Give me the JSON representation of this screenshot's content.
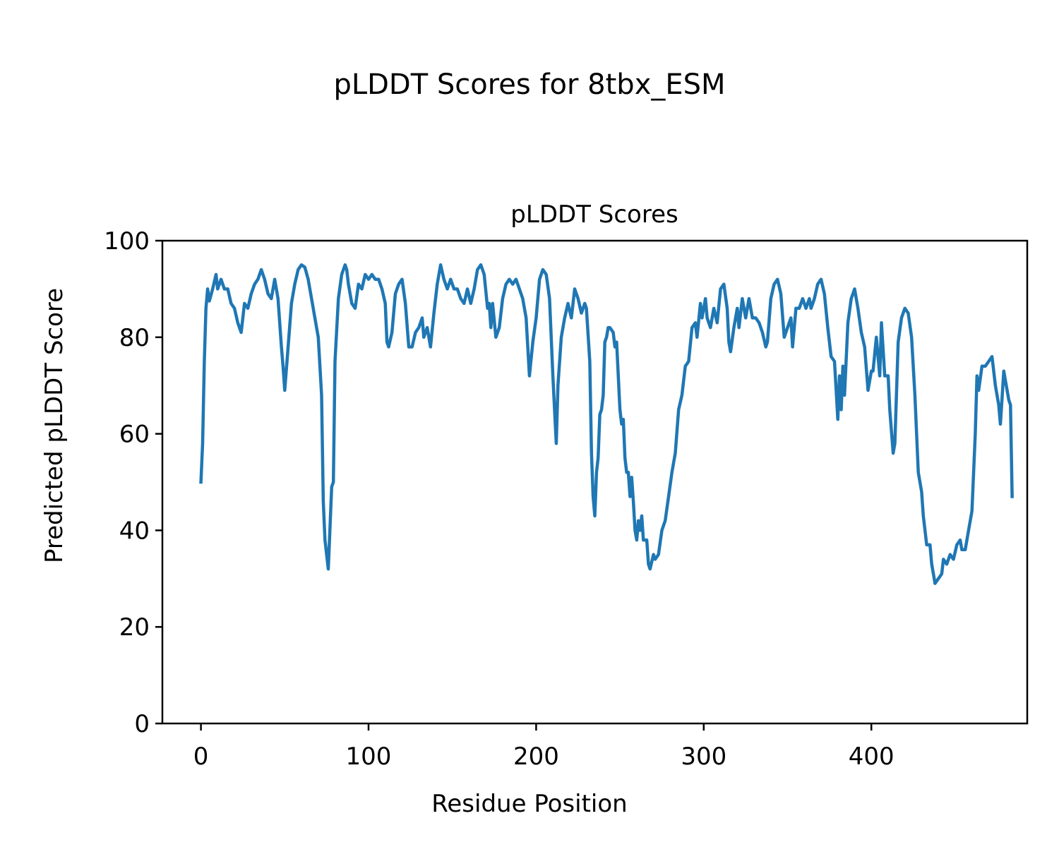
{
  "figure": {
    "suptitle": "pLDDT Scores for 8tbx_ESM"
  },
  "chart_data": {
    "type": "line",
    "title": "pLDDT Scores",
    "xlabel": "Residue Position",
    "ylabel": "Predicted pLDDT Score",
    "xlim": [
      -23,
      493
    ],
    "ylim": [
      0,
      100
    ],
    "xticks": [
      0,
      100,
      200,
      300,
      400
    ],
    "yticks": [
      0,
      20,
      40,
      60,
      80,
      100
    ],
    "grid": false,
    "legend": "none",
    "series_color": "#1f77b4",
    "knots": [
      [
        0,
        50
      ],
      [
        1,
        58
      ],
      [
        2,
        75
      ],
      [
        3,
        86
      ],
      [
        4,
        90
      ],
      [
        5,
        87.5
      ],
      [
        7,
        90
      ],
      [
        9,
        93
      ],
      [
        10,
        90
      ],
      [
        12,
        92
      ],
      [
        14,
        90
      ],
      [
        16,
        90
      ],
      [
        18,
        87
      ],
      [
        20,
        86
      ],
      [
        22,
        83
      ],
      [
        24,
        81
      ],
      [
        26,
        87
      ],
      [
        28,
        86
      ],
      [
        30,
        89
      ],
      [
        32,
        91
      ],
      [
        34,
        92
      ],
      [
        36,
        94
      ],
      [
        38,
        92
      ],
      [
        40,
        89
      ],
      [
        42,
        88
      ],
      [
        44,
        92
      ],
      [
        46,
        88
      ],
      [
        48,
        78
      ],
      [
        49,
        74
      ],
      [
        50,
        69
      ],
      [
        52,
        78
      ],
      [
        54,
        87
      ],
      [
        56,
        91
      ],
      [
        58,
        94
      ],
      [
        60,
        95
      ],
      [
        62,
        94.5
      ],
      [
        64,
        92
      ],
      [
        66,
        88
      ],
      [
        68,
        84
      ],
      [
        70,
        80
      ],
      [
        72,
        68
      ],
      [
        73,
        46
      ],
      [
        74,
        38
      ],
      [
        76,
        32
      ],
      [
        78,
        49
      ],
      [
        79,
        50
      ],
      [
        80,
        75
      ],
      [
        82,
        88
      ],
      [
        84,
        93
      ],
      [
        86,
        95
      ],
      [
        87,
        94
      ],
      [
        88,
        91
      ],
      [
        90,
        87
      ],
      [
        92,
        86
      ],
      [
        94,
        91
      ],
      [
        96,
        90
      ],
      [
        98,
        93
      ],
      [
        100,
        92
      ],
      [
        102,
        93
      ],
      [
        104,
        92
      ],
      [
        106,
        92
      ],
      [
        108,
        90
      ],
      [
        110,
        87
      ],
      [
        111,
        79
      ],
      [
        112,
        78
      ],
      [
        114,
        81
      ],
      [
        116,
        89
      ],
      [
        118,
        91
      ],
      [
        120,
        92
      ],
      [
        122,
        87
      ],
      [
        124,
        78
      ],
      [
        126,
        78
      ],
      [
        128,
        81
      ],
      [
        130,
        82
      ],
      [
        132,
        84
      ],
      [
        133,
        80
      ],
      [
        135,
        82
      ],
      [
        137,
        78
      ],
      [
        139,
        85
      ],
      [
        141,
        91
      ],
      [
        143,
        95
      ],
      [
        145,
        92
      ],
      [
        147,
        90
      ],
      [
        149,
        92
      ],
      [
        151,
        90
      ],
      [
        153,
        90
      ],
      [
        155,
        88
      ],
      [
        157,
        87
      ],
      [
        159,
        90
      ],
      [
        161,
        87
      ],
      [
        163,
        90
      ],
      [
        165,
        94
      ],
      [
        167,
        95
      ],
      [
        169,
        93
      ],
      [
        171,
        86
      ],
      [
        172,
        87
      ],
      [
        173,
        82
      ],
      [
        174,
        87
      ],
      [
        176,
        80
      ],
      [
        178,
        82
      ],
      [
        180,
        88
      ],
      [
        182,
        91
      ],
      [
        184,
        92
      ],
      [
        186,
        91
      ],
      [
        188,
        92
      ],
      [
        190,
        90
      ],
      [
        192,
        88
      ],
      [
        194,
        84
      ],
      [
        196,
        72
      ],
      [
        198,
        79
      ],
      [
        200,
        84
      ],
      [
        202,
        92
      ],
      [
        204,
        94
      ],
      [
        206,
        93
      ],
      [
        208,
        88
      ],
      [
        210,
        72
      ],
      [
        212,
        58
      ],
      [
        213,
        70
      ],
      [
        215,
        80
      ],
      [
        217,
        84
      ],
      [
        219,
        87
      ],
      [
        221,
        84
      ],
      [
        223,
        90
      ],
      [
        225,
        88
      ],
      [
        227,
        85
      ],
      [
        229,
        87
      ],
      [
        230,
        86
      ],
      [
        232,
        75
      ],
      [
        233,
        56
      ],
      [
        234,
        47
      ],
      [
        235,
        43
      ],
      [
        236,
        52
      ],
      [
        237,
        55
      ],
      [
        238,
        64
      ],
      [
        239,
        65
      ],
      [
        240,
        68
      ],
      [
        241,
        79
      ],
      [
        242,
        80
      ],
      [
        243,
        82
      ],
      [
        244,
        82
      ],
      [
        246,
        81
      ],
      [
        247,
        78
      ],
      [
        248,
        79
      ],
      [
        250,
        65
      ],
      [
        251,
        62
      ],
      [
        252,
        63
      ],
      [
        253,
        55
      ],
      [
        254,
        52
      ],
      [
        255,
        52
      ],
      [
        256,
        47
      ],
      [
        257,
        51
      ],
      [
        258,
        46
      ],
      [
        259,
        40
      ],
      [
        260,
        38
      ],
      [
        261,
        42
      ],
      [
        262,
        40
      ],
      [
        263,
        43
      ],
      [
        264,
        38
      ],
      [
        266,
        38
      ],
      [
        267,
        33
      ],
      [
        268,
        32
      ],
      [
        270,
        35
      ],
      [
        271,
        34
      ],
      [
        273,
        35
      ],
      [
        275,
        40
      ],
      [
        277,
        42
      ],
      [
        279,
        47
      ],
      [
        281,
        52
      ],
      [
        283,
        56
      ],
      [
        285,
        65
      ],
      [
        287,
        68
      ],
      [
        289,
        74
      ],
      [
        291,
        75
      ],
      [
        293,
        82
      ],
      [
        295,
        83
      ],
      [
        296,
        80
      ],
      [
        298,
        87
      ],
      [
        299,
        84
      ],
      [
        301,
        88
      ],
      [
        302,
        84
      ],
      [
        304,
        82
      ],
      [
        306,
        86
      ],
      [
        308,
        83
      ],
      [
        310,
        90
      ],
      [
        312,
        91
      ],
      [
        314,
        86
      ],
      [
        315,
        79
      ],
      [
        316,
        77
      ],
      [
        318,
        82
      ],
      [
        320,
        86
      ],
      [
        321,
        82
      ],
      [
        323,
        88
      ],
      [
        325,
        84
      ],
      [
        327,
        88
      ],
      [
        329,
        84
      ],
      [
        331,
        84
      ],
      [
        333,
        83
      ],
      [
        335,
        81
      ],
      [
        337,
        78
      ],
      [
        338,
        79
      ],
      [
        340,
        88
      ],
      [
        342,
        91
      ],
      [
        344,
        92
      ],
      [
        346,
        89
      ],
      [
        348,
        80
      ],
      [
        350,
        82
      ],
      [
        352,
        84
      ],
      [
        353,
        78
      ],
      [
        355,
        86
      ],
      [
        357,
        86
      ],
      [
        359,
        88
      ],
      [
        361,
        86
      ],
      [
        363,
        88
      ],
      [
        364,
        86
      ],
      [
        366,
        88
      ],
      [
        368,
        91
      ],
      [
        370,
        92
      ],
      [
        372,
        89
      ],
      [
        374,
        82
      ],
      [
        376,
        76
      ],
      [
        378,
        75
      ],
      [
        379,
        69
      ],
      [
        380,
        63
      ],
      [
        381,
        72
      ],
      [
        382,
        65
      ],
      [
        383,
        74
      ],
      [
        384,
        68
      ],
      [
        386,
        83
      ],
      [
        388,
        88
      ],
      [
        390,
        90
      ],
      [
        392,
        86
      ],
      [
        394,
        81
      ],
      [
        396,
        78
      ],
      [
        398,
        69
      ],
      [
        400,
        73
      ],
      [
        401,
        73
      ],
      [
        403,
        80
      ],
      [
        404,
        76
      ],
      [
        405,
        72
      ],
      [
        406,
        83
      ],
      [
        408,
        72
      ],
      [
        410,
        72
      ],
      [
        411,
        65
      ],
      [
        413,
        56
      ],
      [
        414,
        58
      ],
      [
        416,
        79
      ],
      [
        418,
        84
      ],
      [
        420,
        86
      ],
      [
        422,
        85
      ],
      [
        424,
        80
      ],
      [
        426,
        68
      ],
      [
        427,
        60
      ],
      [
        428,
        52
      ],
      [
        430,
        48
      ],
      [
        431,
        43
      ],
      [
        433,
        37
      ],
      [
        435,
        37
      ],
      [
        436,
        33
      ],
      [
        437,
        31
      ],
      [
        438,
        29
      ],
      [
        440,
        30
      ],
      [
        442,
        31
      ],
      [
        443,
        34
      ],
      [
        445,
        33
      ],
      [
        447,
        35
      ],
      [
        449,
        34
      ],
      [
        451,
        37
      ],
      [
        453,
        38
      ],
      [
        454,
        36
      ],
      [
        456,
        36
      ],
      [
        458,
        40
      ],
      [
        460,
        44
      ],
      [
        462,
        60
      ],
      [
        463,
        72
      ],
      [
        464,
        69
      ],
      [
        466,
        74
      ],
      [
        468,
        74
      ],
      [
        470,
        75
      ],
      [
        472,
        76
      ],
      [
        474,
        70
      ],
      [
        476,
        66
      ],
      [
        477,
        62
      ],
      [
        479,
        73
      ],
      [
        481,
        69
      ],
      [
        482,
        67
      ],
      [
        483,
        66
      ],
      [
        484,
        47
      ]
    ]
  }
}
